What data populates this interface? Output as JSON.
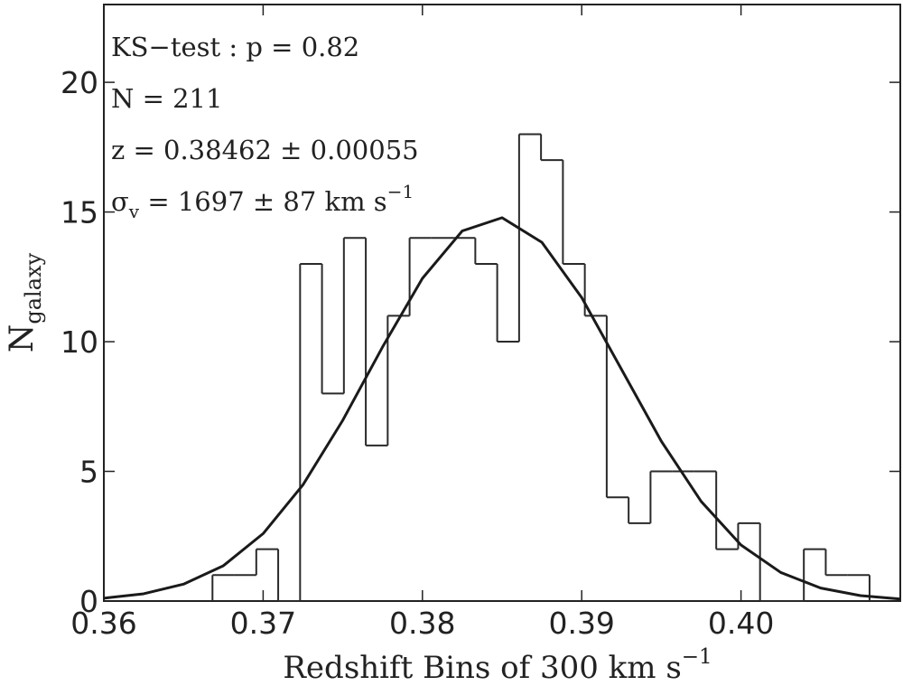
{
  "chart_data": {
    "type": "histogram",
    "xlabel": {
      "base": "Redshift Bins of 300 km s",
      "sup": "−1"
    },
    "ylabel": {
      "base": "N",
      "sub": "galaxy"
    },
    "annotations": [
      {
        "base": "KS−test : p = 0.82"
      },
      {
        "base": "N = 211"
      },
      {
        "base": "z = 0.38462 ± 0.00055"
      },
      {
        "base": "σ",
        "sub": "v",
        "rest": " = 1697 ± 87 km s",
        "sup": "−1"
      }
    ],
    "bins": [
      0.36682,
      0.368195,
      0.36957,
      0.370945,
      0.37232,
      0.373695,
      0.37507,
      0.376445,
      0.37782,
      0.379195,
      0.38057,
      0.381945,
      0.38332,
      0.384695,
      0.38607,
      0.387445,
      0.38882,
      0.390195,
      0.39157,
      0.392945,
      0.39432,
      0.395695,
      0.39707,
      0.398445,
      0.39982,
      0.401195,
      0.40257,
      0.403945,
      0.40532,
      0.406695,
      0.40807
    ],
    "counts": [
      1,
      1,
      2,
      0,
      13,
      8,
      14,
      6,
      11,
      14,
      14,
      14,
      13,
      10,
      18,
      17,
      13,
      11,
      4,
      3,
      5,
      5,
      5,
      2,
      3,
      0,
      0,
      2,
      1,
      1
    ],
    "color": "#2a2a2a",
    "curve": {
      "x": [
        0.36,
        0.3625,
        0.365,
        0.3675,
        0.37,
        0.3725,
        0.375,
        0.3775,
        0.38,
        0.3825,
        0.385,
        0.3875,
        0.39,
        0.3925,
        0.395,
        0.3975,
        0.4,
        0.4025,
        0.405,
        0.4075,
        0.41
      ],
      "values": [
        0.11,
        0.28,
        0.65,
        1.36,
        2.6,
        4.48,
        6.97,
        9.8,
        12.44,
        14.27,
        14.78,
        13.83,
        11.7,
        8.93,
        6.16,
        3.84,
        2.16,
        1.1,
        0.5,
        0.21,
        0.08
      ],
      "color": "#1a1a1a"
    },
    "xlim": [
      0.36,
      0.41
    ],
    "ylim": [
      0,
      23
    ],
    "xticks": [
      0.36,
      0.37,
      0.38,
      0.39,
      {
        "value": 0.4,
        "label": "0.40"
      }
    ],
    "yticks": [
      0,
      5,
      10,
      15,
      20
    ]
  }
}
